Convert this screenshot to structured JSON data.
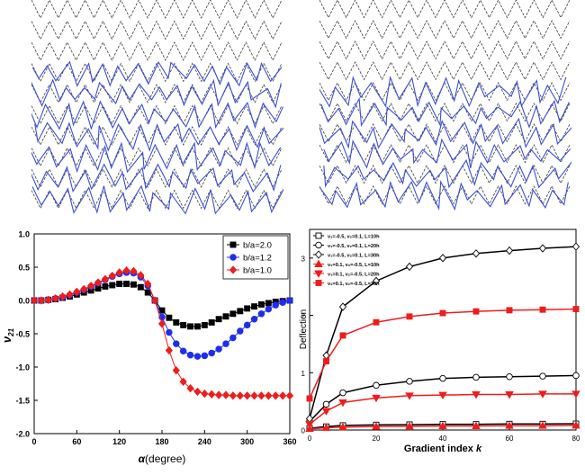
{
  "figure": {
    "mesh_colors": {
      "undeformed": "#3a3a3a",
      "deformed": "#3b4fd6"
    }
  },
  "chart_data": [
    {
      "type": "line",
      "xlabel_symbol": "α",
      "xlabel_unit": "(degree)",
      "ylabel_symbol": "ν",
      "ylabel_subscript": "21",
      "xlim": [
        0,
        360
      ],
      "ylim": [
        -2.0,
        1.0
      ],
      "xticks": [
        "0",
        "60",
        "120",
        "180",
        "240",
        "300",
        "360"
      ],
      "yticks": [
        "1.0",
        "0.5",
        "0.0",
        "-0.5",
        "-1.0",
        "-1.5",
        "-2.0"
      ],
      "xtick_values": [
        0,
        60,
        120,
        180,
        240,
        300,
        360
      ],
      "ytick_values": [
        1.0,
        0.5,
        0.0,
        -0.5,
        -1.0,
        -1.5,
        -2.0
      ],
      "legend_position": "top-right",
      "x": [
        0,
        10,
        20,
        30,
        40,
        50,
        60,
        70,
        80,
        90,
        100,
        110,
        120,
        130,
        140,
        150,
        160,
        170,
        180,
        190,
        200,
        210,
        220,
        230,
        240,
        250,
        260,
        270,
        280,
        290,
        300,
        310,
        320,
        330,
        340,
        350,
        360
      ],
      "series": [
        {
          "name": "b/a=2.0",
          "color": "#000000",
          "marker": "square",
          "values": [
            0.0,
            0.0,
            0.01,
            0.02,
            0.04,
            0.06,
            0.09,
            0.12,
            0.15,
            0.18,
            0.21,
            0.23,
            0.25,
            0.25,
            0.24,
            0.2,
            0.12,
            0.0,
            -0.15,
            -0.26,
            -0.33,
            -0.37,
            -0.39,
            -0.39,
            -0.37,
            -0.33,
            -0.28,
            -0.24,
            -0.2,
            -0.16,
            -0.12,
            -0.09,
            -0.06,
            -0.04,
            -0.02,
            -0.01,
            0.0
          ]
        },
        {
          "name": "b/a=1.2",
          "color": "#1e2ef0",
          "marker": "circle",
          "values": [
            0.0,
            0.0,
            0.01,
            0.03,
            0.05,
            0.08,
            0.12,
            0.16,
            0.21,
            0.26,
            0.31,
            0.36,
            0.4,
            0.42,
            0.41,
            0.35,
            0.22,
            0.0,
            -0.25,
            -0.48,
            -0.65,
            -0.76,
            -0.82,
            -0.84,
            -0.83,
            -0.79,
            -0.73,
            -0.65,
            -0.56,
            -0.46,
            -0.37,
            -0.28,
            -0.2,
            -0.13,
            -0.07,
            -0.03,
            0.0
          ]
        },
        {
          "name": "b/a=1.0",
          "color": "#ef1c1c",
          "marker": "diamond",
          "values": [
            0.0,
            0.0,
            0.01,
            0.03,
            0.06,
            0.09,
            0.13,
            0.17,
            0.22,
            0.27,
            0.32,
            0.37,
            0.42,
            0.45,
            0.44,
            0.38,
            0.25,
            0.0,
            -0.35,
            -0.75,
            -1.05,
            -1.22,
            -1.32,
            -1.37,
            -1.4,
            -1.41,
            -1.42,
            -1.42,
            -1.43,
            -1.43,
            -1.43,
            -1.43,
            -1.43,
            -1.43,
            -1.43,
            -1.43,
            -1.43
          ]
        }
      ]
    },
    {
      "type": "line",
      "xlabel": "Gradient index",
      "xlabel_italic": "k",
      "ylabel": "Deflection",
      "xlim": [
        0,
        80
      ],
      "ylim": [
        0,
        3.5
      ],
      "xticks": [
        "0",
        "20",
        "40",
        "60",
        "80"
      ],
      "yticks": [
        "0",
        "1",
        "2",
        "3"
      ],
      "xtick_values": [
        0,
        20,
        40,
        60,
        80
      ],
      "ytick_values": [
        0,
        1,
        2,
        3
      ],
      "legend_position": "top-left",
      "x": [
        0,
        5,
        10,
        20,
        30,
        40,
        50,
        60,
        70,
        80
      ],
      "series": [
        {
          "name": "ν₁=-0.5, ν₂=0.1, L=10h",
          "color": "#000000",
          "marker": "open-square",
          "values": [
            0.03,
            0.06,
            0.08,
            0.09,
            0.095,
            0.1,
            0.1,
            0.105,
            0.105,
            0.11
          ]
        },
        {
          "name": "ν₁=-0.5, ν₂=0.1, L=20h",
          "color": "#000000",
          "marker": "open-circle",
          "values": [
            0.15,
            0.45,
            0.65,
            0.78,
            0.85,
            0.9,
            0.92,
            0.93,
            0.94,
            0.95
          ]
        },
        {
          "name": "ν₁=-0.5, ν₂=0.1, L=30h",
          "color": "#000000",
          "marker": "open-diamond",
          "values": [
            0.2,
            1.3,
            2.15,
            2.6,
            2.85,
            3.0,
            3.08,
            3.13,
            3.17,
            3.2
          ]
        },
        {
          "name": "ν₁=0.1, ν₂=-0.5, L=10h",
          "color": "#ef1c1c",
          "marker": "filled-triangle-up",
          "values": [
            0.02,
            0.04,
            0.05,
            0.06,
            0.065,
            0.07,
            0.07,
            0.075,
            0.075,
            0.08
          ]
        },
        {
          "name": "ν₁=0.1, ν₂=-0.5, L=20h",
          "color": "#ef1c1c",
          "marker": "filled-triangle-down",
          "values": [
            0.1,
            0.33,
            0.48,
            0.56,
            0.6,
            0.61,
            0.62,
            0.62,
            0.63,
            0.63
          ]
        },
        {
          "name": "ν₁=0.1, ν₂=-0.5, L=30h",
          "color": "#ef1c1c",
          "marker": "filled-square",
          "values": [
            0.55,
            1.2,
            1.65,
            1.88,
            1.98,
            2.04,
            2.07,
            2.09,
            2.1,
            2.11
          ]
        }
      ]
    }
  ]
}
